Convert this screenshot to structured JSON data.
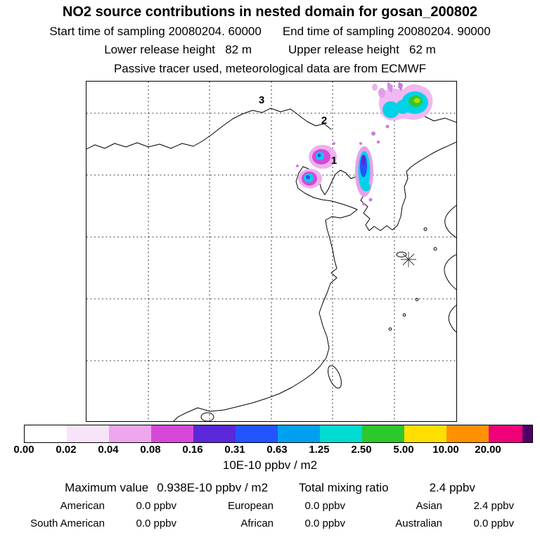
{
  "header": {
    "title": "NO2 source contributions in nested domain for gosan_200802",
    "start_time": "Start time of sampling 20080204. 60000",
    "end_time": "End time of sampling 20080204. 90000",
    "lower_release": "Lower release height   82 m",
    "upper_release": "Upper release height   62 m",
    "tracer_info": "Passive tracer used, meteorological data are from ECMWF"
  },
  "map": {
    "cluster_labels": [
      {
        "text": "1"
      },
      {
        "text": "2"
      },
      {
        "text": "3"
      }
    ],
    "receptor_marker": "asterisk"
  },
  "colorbar": {
    "labels": [
      "0.00",
      "0.02",
      "0.04",
      "0.08",
      "0.16",
      "0.31",
      "0.63",
      "1.25",
      "2.50",
      "5.00",
      "10.00",
      "20.00"
    ],
    "colors": [
      "#ffffff",
      "#f8e4f8",
      "#eea6ee",
      "#d848d8",
      "#5a28d8",
      "#2255ff",
      "#00a0f0",
      "#00dcd2",
      "#2cc82c",
      "#ffdf00",
      "#ff9000",
      "#f00078",
      "#500064"
    ],
    "units": "10E-10 ppbv / m2"
  },
  "stats": {
    "max_label": "Maximum value",
    "max_value": "0.938E-10 ppbv / m2",
    "total_label": "Total mixing ratio",
    "total_value": "2.4 ppbv",
    "contributions": [
      {
        "region": "American",
        "value": "0.0 ppbv"
      },
      {
        "region": "European",
        "value": "0.0 ppbv"
      },
      {
        "region": "Asian",
        "value": "2.4 ppbv"
      },
      {
        "region": "South American",
        "value": "0.0 ppbv"
      },
      {
        "region": "African",
        "value": "0.0 ppbv"
      },
      {
        "region": "Australian",
        "value": "0.0 ppbv"
      }
    ]
  },
  "chart_data": {
    "type": "heatmap",
    "title": "NO2 source contributions in nested domain for gosan_200802",
    "description": "Geographic map of East Asia with filled concentration contours of NO2 source contributions, numbered plume cluster labels 1-3, and a receptor asterisk marker near Gosan (Jeju).",
    "colorbar_levels": [
      0.0,
      0.02,
      0.04,
      0.08,
      0.16,
      0.31,
      0.63,
      1.25,
      2.5,
      5.0,
      10.0,
      20.0
    ],
    "colorbar_units": "10E-10 ppbv / m2",
    "maximum_value": "0.938E-10 ppbv / m2",
    "total_mixing_ratio_ppbv": 2.4,
    "contributions_ppbv": {
      "American": 0.0,
      "European": 0.0,
      "Asian": 2.4,
      "South American": 0.0,
      "African": 0.0,
      "Australian": 0.0
    },
    "sampling": {
      "start": "20080204. 60000",
      "end": "20080204. 90000"
    },
    "release_heights_m": {
      "lower": 82,
      "upper": 62
    },
    "grid": "dashed lat/lon gridlines, 5 internal vertical and 5 internal horizontal",
    "annotations": [
      "1",
      "2",
      "3",
      "receptor asterisk south of Korea"
    ]
  }
}
